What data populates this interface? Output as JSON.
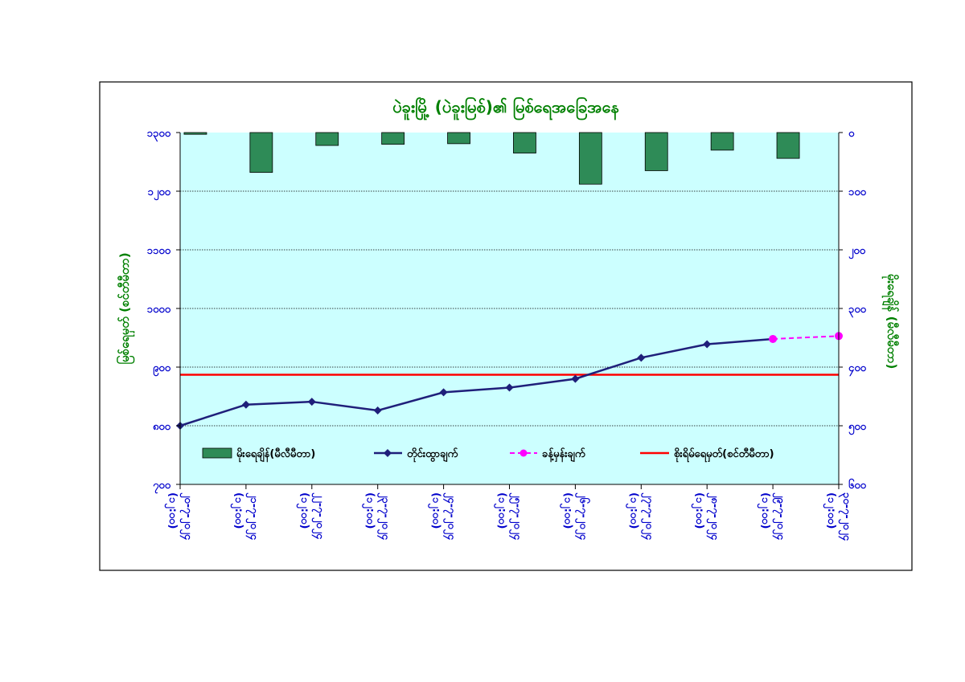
{
  "chart_data": {
    "type": "bar",
    "title": "ပဲခူးမြို့ (ပဲခူးမြစ်)၏ မြစ်ရေအခြေအနေ",
    "categories": [
      [
        "၂၀-၇-၂၀၂၄",
        "(၁၂:၀၀)"
      ],
      [
        "၂၁-၇-၂၀၂၄",
        "(၁၂:၀၀)"
      ],
      [
        "၂၂-၇-၂၀၂၄",
        "(၁၂:၀၀)"
      ],
      [
        "၂၃-၇-၂၀၂၄",
        "(၁၂:၀၀)"
      ],
      [
        "၂၄-၇-၂၀၂၄",
        "(၁၂:၀၀)"
      ],
      [
        "၂၅-၇-၂၀၂၄",
        "(၁၂:၀၀)"
      ],
      [
        "၂၆-၇-၂၀၂၄",
        "(၁၂:၀၀)"
      ],
      [
        "၂၇-၇-၂၀၂၄",
        "(၁၂:၀၀)"
      ],
      [
        "၂၈-၇-၂၀၂၄",
        "(၁၂:၀၀)"
      ],
      [
        "၂၉-၇-၂၀၂၄",
        "(၁၂:၀၀)"
      ],
      [
        "၃၀-၇-၂၀၂၄",
        "(၁၂:၀၀)"
      ]
    ],
    "ylabel": "မြစ်ရေမှတ် (စင်တီမီတာ)",
    "ylabel_right": "မိုးရေချိန် (မီလီမီတာ)",
    "ylim": [
      700,
      1300
    ],
    "ylim_right": [
      0,
      600
    ],
    "yticks_left": [
      "၁၃၀၀",
      "၁၂၀၀",
      "၁၁၀၀",
      "၁၀၀၀",
      "၉၀၀",
      "၈၀၀",
      "၇၀၀"
    ],
    "yticks_right": [
      "၀",
      "၁၀၀",
      "၂၀၀",
      "၃၀၀",
      "၄၀၀",
      "၅၀၀",
      "၆၀၀"
    ],
    "series": [
      {
        "name": "မိုးရေချိန်(မီလီမီတာ)",
        "type": "bar",
        "axis": "right",
        "color": "#2E8B57",
        "values": [
          3,
          68,
          22,
          20,
          19,
          35,
          88,
          65,
          30,
          44,
          null
        ]
      },
      {
        "name": "တိုင်းထွာချက်",
        "type": "line",
        "axis": "left",
        "color": "#1F1F7A",
        "values": [
          800,
          836,
          841,
          826,
          857,
          865,
          880,
          916,
          939,
          948,
          null
        ]
      },
      {
        "name": "ခန့်မှန်းချက်",
        "type": "line",
        "axis": "left",
        "color": "#FF00FF",
        "values": [
          null,
          null,
          null,
          null,
          null,
          null,
          null,
          null,
          null,
          948,
          953
        ]
      },
      {
        "name": "စိုးရိမ်ရေမှတ်(စင်တီမီတာ)",
        "type": "line",
        "axis": "left",
        "color": "#FF0000",
        "values": [
          887,
          887,
          887,
          887,
          887,
          887,
          887,
          887,
          887,
          887,
          887
        ]
      }
    ],
    "grid": true,
    "legend_position": "bottom-inside",
    "colors": {
      "plot_background": "#CCFFFF",
      "title_text": "#008000",
      "axis_title_text": "#008000",
      "tick_text": "#0000CC"
    }
  }
}
